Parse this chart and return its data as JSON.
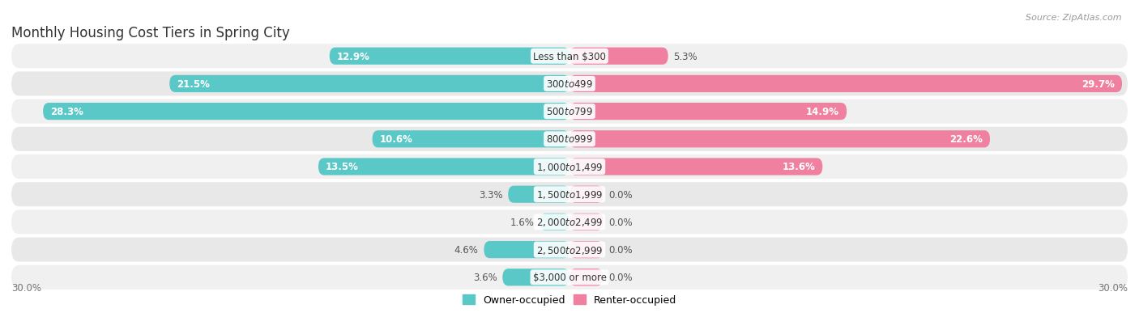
{
  "title": "Monthly Housing Cost Tiers in Spring City",
  "source": "Source: ZipAtlas.com",
  "categories": [
    "Less than $300",
    "$300 to $499",
    "$500 to $799",
    "$800 to $999",
    "$1,000 to $1,499",
    "$1,500 to $1,999",
    "$2,000 to $2,499",
    "$2,500 to $2,999",
    "$3,000 or more"
  ],
  "owner_values": [
    12.9,
    21.5,
    28.3,
    10.6,
    13.5,
    3.3,
    1.6,
    4.6,
    3.6
  ],
  "renter_values": [
    5.3,
    29.7,
    14.9,
    22.6,
    13.6,
    0.0,
    0.0,
    0.0,
    0.0
  ],
  "owner_color": "#5BC8C8",
  "renter_color": "#F080A0",
  "row_color_even": "#F0F0F0",
  "row_color_odd": "#E8E8E8",
  "axis_max": 30.0,
  "title_fontsize": 12,
  "label_fontsize": 8.5,
  "value_fontsize": 8.5,
  "tick_fontsize": 8.5,
  "source_fontsize": 8,
  "inside_label_threshold": 10.0
}
